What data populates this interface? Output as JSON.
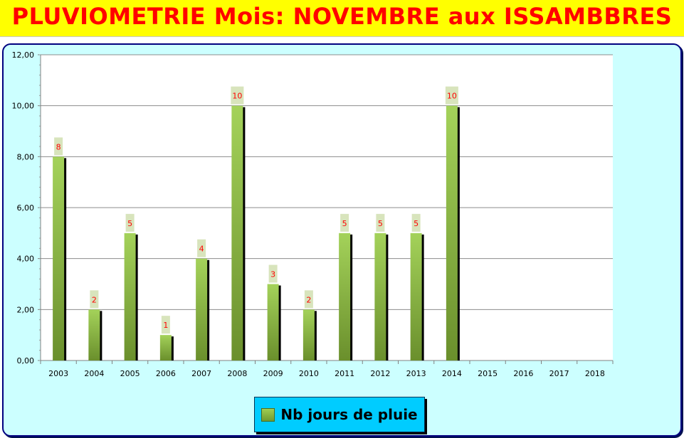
{
  "header": {
    "title": "PLUVIOMETRIE Mois: NOVEMBRE aux ISSAMBBRES"
  },
  "colors": {
    "title_bg": "#ffff00",
    "title_text": "#ff0000",
    "frame_bg": "#ccffff",
    "legend_bg": "#00ccff",
    "bar_top": "#a4d25a",
    "bar_bottom": "#6a8f2c",
    "data_label_text": "#ff0000",
    "data_label_bg": "#d8e4bc"
  },
  "chart_data": {
    "type": "bar",
    "categories": [
      "2003",
      "2004",
      "2005",
      "2006",
      "2007",
      "2008",
      "2009",
      "2010",
      "2011",
      "2012",
      "2013",
      "2014",
      "2015",
      "2016",
      "2017",
      "2018"
    ],
    "series": [
      {
        "name": "Nb jours de pluie",
        "values": [
          8,
          2,
          5,
          1,
          4,
          10,
          3,
          2,
          5,
          5,
          5,
          10,
          null,
          null,
          null,
          null
        ]
      }
    ],
    "data_labels": [
      "8",
      "2",
      "5",
      "1",
      "4",
      "10",
      "3",
      "2",
      "5",
      "5",
      "5",
      "10",
      "",
      "",
      "",
      ""
    ],
    "y_ticks": [
      "0,00",
      "2,00",
      "4,00",
      "6,00",
      "8,00",
      "10,00",
      "12,00"
    ],
    "ylim": [
      0,
      12
    ],
    "y_step": 2,
    "grid": true,
    "legend_position": "bottom-center"
  },
  "legend": {
    "label": "Nb jours de pluie"
  }
}
